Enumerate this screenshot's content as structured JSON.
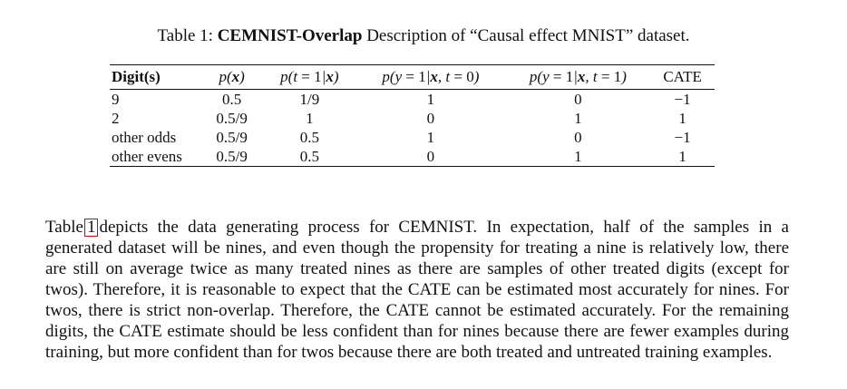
{
  "caption": {
    "prefix": "Table 1:",
    "title": "CEMNIST-Overlap",
    "rest": "Description of “Causal effect MNIST” dataset."
  },
  "table": {
    "headers": {
      "digits": "Digit(s)",
      "px": "p(x)",
      "pt": "p(t = 1|x)",
      "py0": "p(y = 1|x, t = 0)",
      "py1": "p(y = 1|x, t = 1)",
      "cate": "CATE"
    },
    "rows": [
      {
        "digits": "9",
        "px": "0.5",
        "pt": "1/9",
        "py0": "1",
        "py1": "0",
        "cate": "−1"
      },
      {
        "digits": "2",
        "px": "0.5/9",
        "pt": "1",
        "py0": "0",
        "py1": "1",
        "cate": "1"
      },
      {
        "digits": "other odds",
        "px": "0.5/9",
        "pt": "0.5",
        "py0": "1",
        "py1": "0",
        "cate": "−1"
      },
      {
        "digits": "other evens",
        "px": "0.5/9",
        "pt": "0.5",
        "py0": "0",
        "py1": "1",
        "cate": "1"
      }
    ]
  },
  "paragraph": {
    "before_ref": "Table",
    "ref": "1",
    "after_ref": "depicts the data generating process for CEMNIST. In expectation, half of the samples in a generated dataset will be nines, and even though the propensity for treating a nine is relatively low, there are still on average twice as many treated nines as there are samples of other treated digits (except for twos). Therefore, it is reasonable to expect that the CATE can be estimated most accurately for nines. For twos, there is strict non-overlap. Therefore, the CATE cannot be estimated accurately. For the remaining digits, the CATE estimate should be less confident than for nines because there are fewer examples during training, but more confident than for twos because there are both treated and untreated training examples."
  }
}
